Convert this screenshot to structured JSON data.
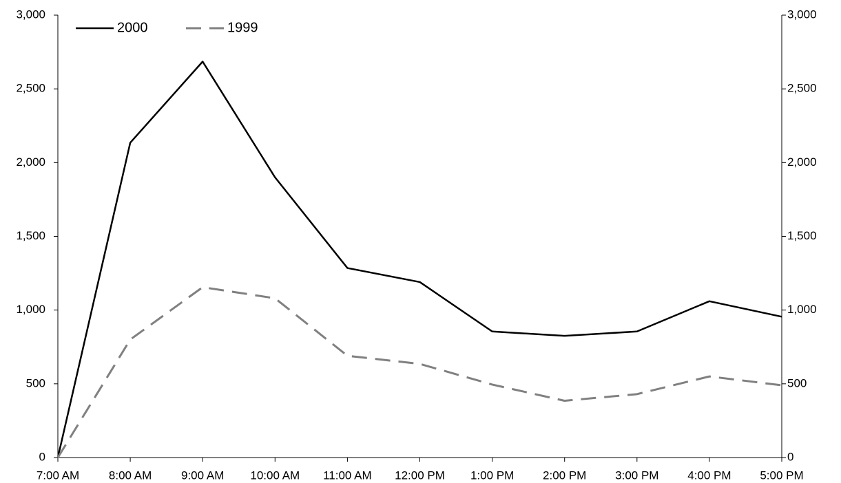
{
  "chart_data": {
    "type": "line",
    "categories": [
      "7:00 AM",
      "8:00 AM",
      "9:00 AM",
      "10:00 AM",
      "11:00 AM",
      "12:00 PM",
      "1:00 PM",
      "2:00 PM",
      "3:00 PM",
      "4:00 PM",
      "5:00 PM"
    ],
    "series": [
      {
        "name": "2000",
        "color": "#000000",
        "dash": false,
        "values": [
          0,
          2135,
          2685,
          1900,
          1285,
          1190,
          855,
          825,
          855,
          1060,
          955
        ]
      },
      {
        "name": "1999",
        "color": "#808080",
        "dash": true,
        "values": [
          0,
          800,
          1155,
          1080,
          690,
          635,
          495,
          385,
          430,
          550,
          490
        ]
      }
    ],
    "ylim": [
      0,
      3000
    ],
    "yticks": [
      0,
      500,
      {
        "value": 1000,
        "label": "1,000"
      },
      {
        "value": 1500,
        "label": "1,500"
      },
      {
        "value": 2000,
        "label": "2,000"
      },
      {
        "value": 2500,
        "label": "2,500"
      },
      {
        "value": 3000,
        "label": "3,000"
      }
    ],
    "y2lim": [
      0,
      3000
    ],
    "y2ticks": [
      0,
      500,
      {
        "value": 1000,
        "label": "1,000"
      },
      {
        "value": 1500,
        "label": "1,500"
      },
      {
        "value": 2000,
        "label": "2,000"
      },
      {
        "value": 2500,
        "label": "2,500"
      },
      {
        "value": 3000,
        "label": "3,000"
      }
    ],
    "grid": false,
    "legend": "top-left"
  }
}
